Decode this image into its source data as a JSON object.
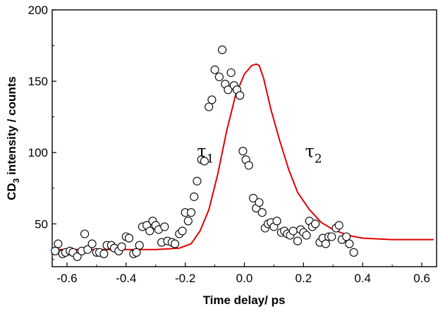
{
  "chart_data": {
    "type": "scatter",
    "title": "",
    "xlabel": "Time delay/ ps",
    "ylabel_main": "CD",
    "ylabel_sub": "3",
    "ylabel_rest": " intensity / counts",
    "xlim": [
      -0.65,
      0.65
    ],
    "ylim": [
      20,
      200
    ],
    "x_ticks": [
      -0.6,
      -0.4,
      -0.2,
      0.0,
      0.2,
      0.4,
      0.6
    ],
    "x_tick_labels": [
      "-0.6",
      "-0.4",
      "-0.2",
      "0.0",
      "0.2",
      "0.4",
      "0.6"
    ],
    "y_ticks": [
      50,
      100,
      150,
      200
    ],
    "y_tick_labels": [
      "50",
      "100",
      "150",
      "200"
    ],
    "grid": false,
    "annotations": [
      {
        "main": "τ",
        "sub": "1",
        "x": -0.16,
        "y": 97
      },
      {
        "main": "τ",
        "sub": "2",
        "x": 0.205,
        "y": 97
      }
    ],
    "series": [
      {
        "kind": "scatter",
        "marker": "open-circle",
        "color": "#000000",
        "points": [
          [
            -0.64,
            31
          ],
          [
            -0.63,
            36
          ],
          [
            -0.615,
            29
          ],
          [
            -0.605,
            30
          ],
          [
            -0.59,
            31
          ],
          [
            -0.58,
            30
          ],
          [
            -0.565,
            27
          ],
          [
            -0.55,
            31
          ],
          [
            -0.54,
            43
          ],
          [
            -0.53,
            32
          ],
          [
            -0.515,
            36
          ],
          [
            -0.5,
            30
          ],
          [
            -0.49,
            30
          ],
          [
            -0.475,
            29
          ],
          [
            -0.465,
            35
          ],
          [
            -0.45,
            35
          ],
          [
            -0.44,
            33
          ],
          [
            -0.425,
            31
          ],
          [
            -0.415,
            34
          ],
          [
            -0.4,
            41
          ],
          [
            -0.39,
            40
          ],
          [
            -0.375,
            29
          ],
          [
            -0.365,
            30
          ],
          [
            -0.355,
            35
          ],
          [
            -0.345,
            48
          ],
          [
            -0.33,
            49
          ],
          [
            -0.32,
            45
          ],
          [
            -0.31,
            52
          ],
          [
            -0.3,
            49
          ],
          [
            -0.29,
            46
          ],
          [
            -0.28,
            37
          ],
          [
            -0.27,
            48
          ],
          [
            -0.26,
            38
          ],
          [
            -0.245,
            37
          ],
          [
            -0.235,
            36
          ],
          [
            -0.22,
            43
          ],
          [
            -0.21,
            45
          ],
          [
            -0.2,
            58
          ],
          [
            -0.19,
            52
          ],
          [
            -0.18,
            58
          ],
          [
            -0.17,
            69
          ],
          [
            -0.16,
            80
          ],
          [
            -0.145,
            95
          ],
          [
            -0.135,
            94
          ],
          [
            -0.12,
            132
          ],
          [
            -0.11,
            137
          ],
          [
            -0.1,
            158
          ],
          [
            -0.085,
            153
          ],
          [
            -0.075,
            172
          ],
          [
            -0.065,
            148
          ],
          [
            -0.055,
            144
          ],
          [
            -0.045,
            156
          ],
          [
            -0.035,
            147
          ],
          [
            -0.025,
            144
          ],
          [
            -0.015,
            140
          ],
          [
            -0.005,
            101
          ],
          [
            0.005,
            95
          ],
          [
            0.015,
            91
          ],
          [
            0.03,
            68
          ],
          [
            0.04,
            61
          ],
          [
            0.05,
            65
          ],
          [
            0.06,
            58
          ],
          [
            0.07,
            47
          ],
          [
            0.08,
            50
          ],
          [
            0.09,
            51
          ],
          [
            0.1,
            48
          ],
          [
            0.11,
            52
          ],
          [
            0.125,
            44
          ],
          [
            0.135,
            45
          ],
          [
            0.145,
            43
          ],
          [
            0.155,
            42
          ],
          [
            0.165,
            45
          ],
          [
            0.18,
            38
          ],
          [
            0.19,
            46
          ],
          [
            0.2,
            44
          ],
          [
            0.21,
            42
          ],
          [
            0.22,
            52
          ],
          [
            0.23,
            48
          ],
          [
            0.24,
            50
          ],
          [
            0.255,
            37
          ],
          [
            0.265,
            40
          ],
          [
            0.275,
            36
          ],
          [
            0.285,
            41
          ],
          [
            0.295,
            41
          ],
          [
            0.31,
            47
          ],
          [
            0.32,
            49
          ],
          [
            0.33,
            39
          ],
          [
            0.345,
            41
          ],
          [
            0.355,
            36
          ],
          [
            0.37,
            30
          ]
        ]
      },
      {
        "kind": "line",
        "color": "#e00000",
        "points": [
          [
            -0.64,
            32
          ],
          [
            -0.3,
            32
          ],
          [
            -0.22,
            33
          ],
          [
            -0.18,
            36
          ],
          [
            -0.15,
            45
          ],
          [
            -0.12,
            60
          ],
          [
            -0.09,
            85
          ],
          [
            -0.06,
            115
          ],
          [
            -0.03,
            140
          ],
          [
            0.0,
            155
          ],
          [
            0.025,
            161
          ],
          [
            0.04,
            162
          ],
          [
            0.05,
            161
          ],
          [
            0.065,
            152
          ],
          [
            0.09,
            130
          ],
          [
            0.12,
            108
          ],
          [
            0.15,
            88
          ],
          [
            0.18,
            72
          ],
          [
            0.22,
            60
          ],
          [
            0.26,
            51
          ],
          [
            0.3,
            46
          ],
          [
            0.35,
            42
          ],
          [
            0.4,
            40
          ],
          [
            0.5,
            39
          ],
          [
            0.64,
            39
          ]
        ]
      }
    ]
  }
}
